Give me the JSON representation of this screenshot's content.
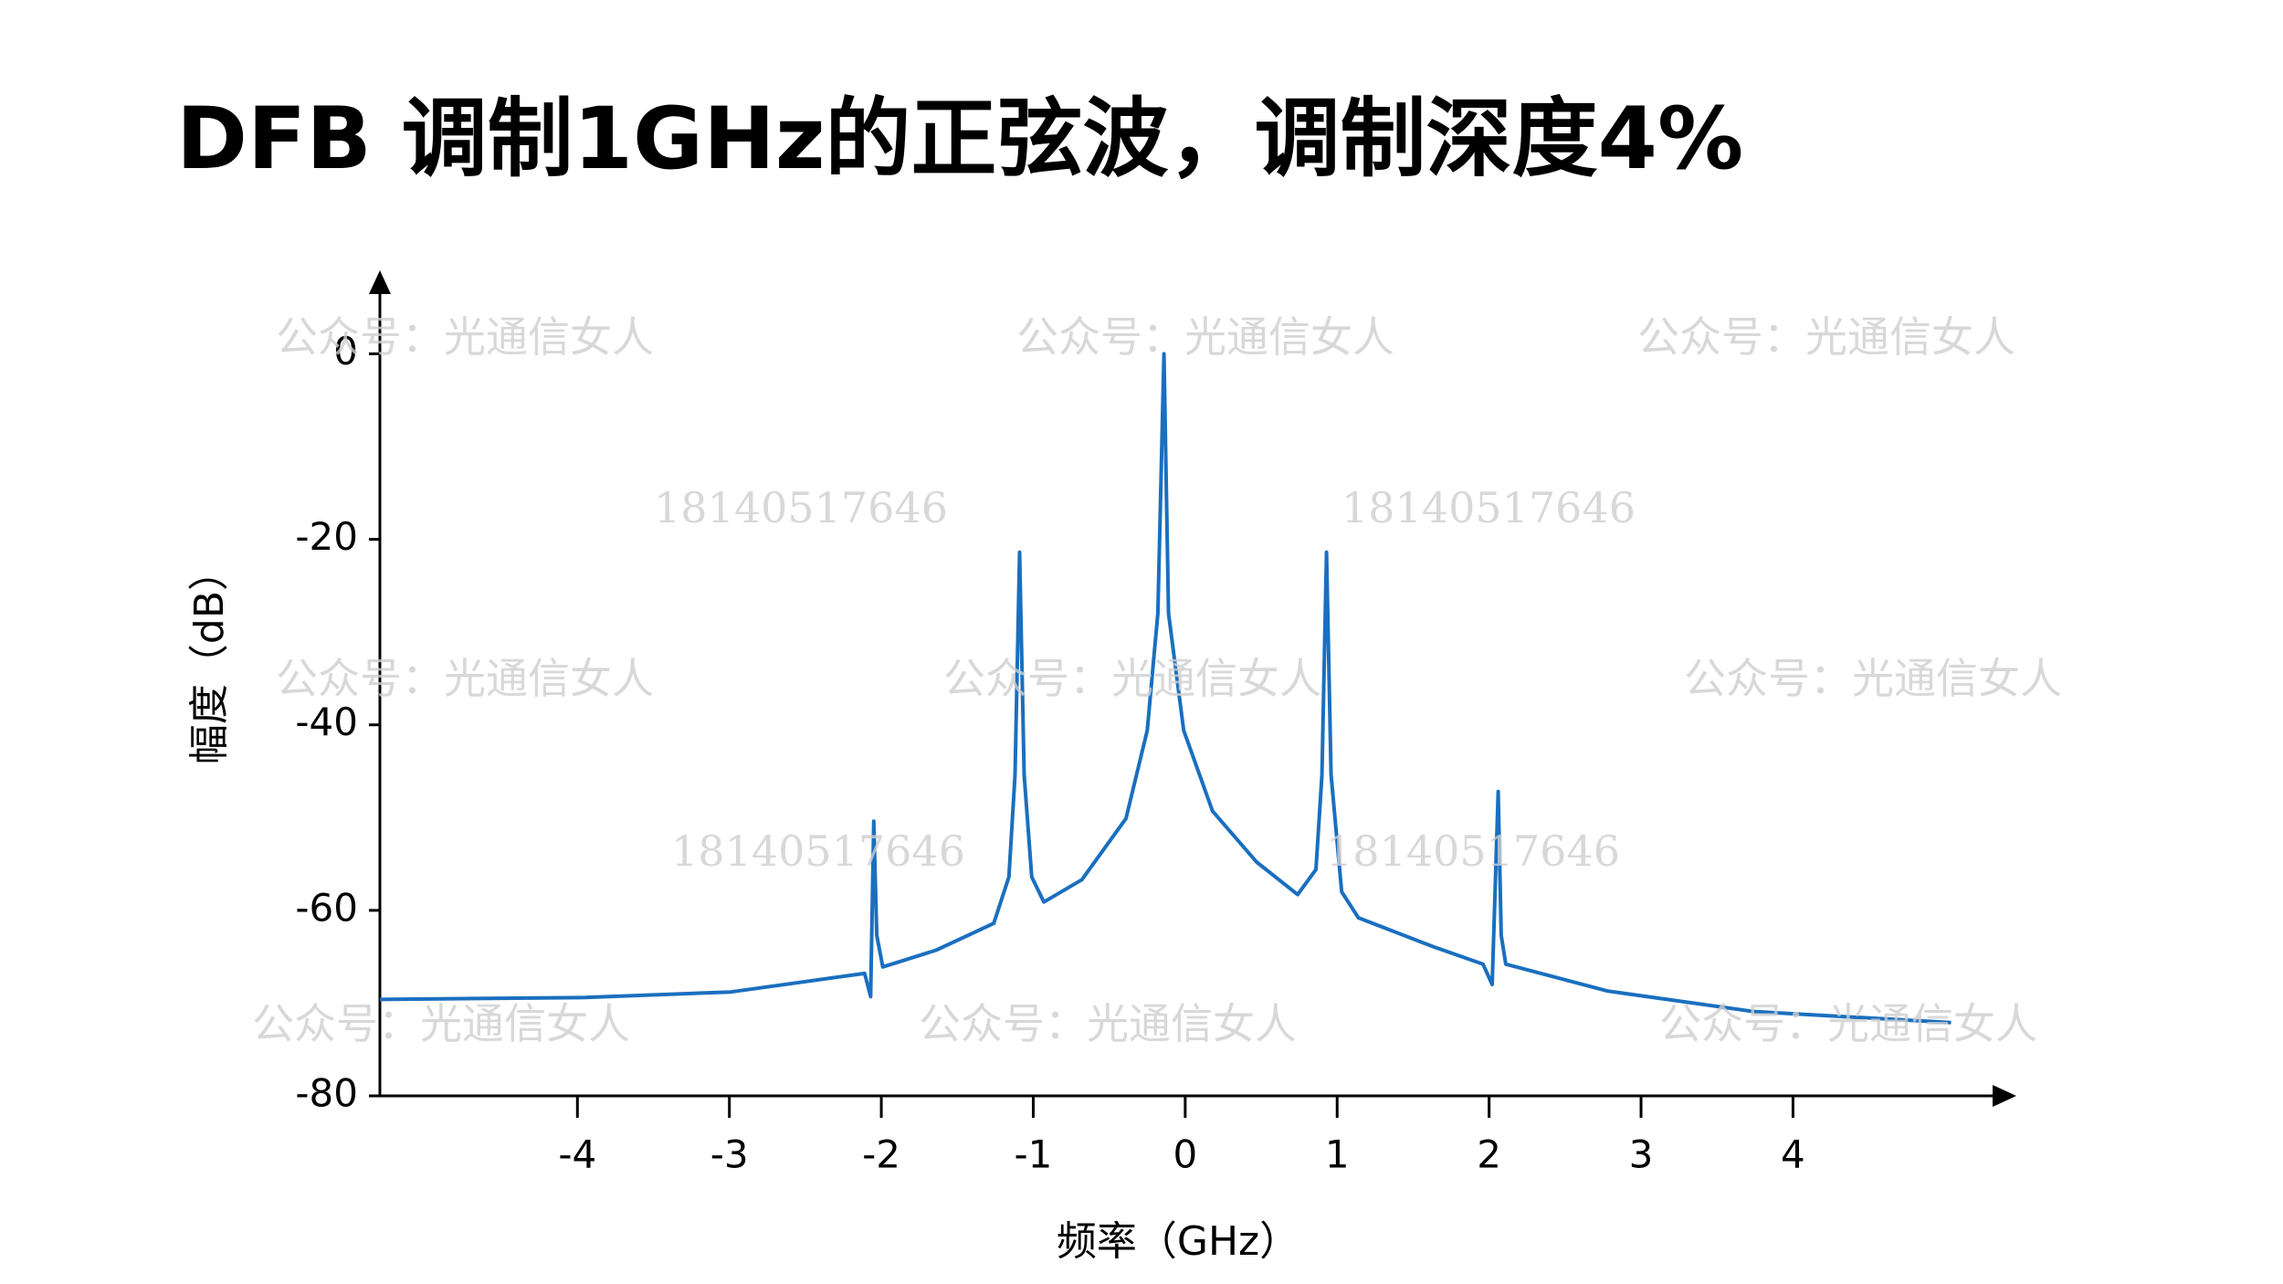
{
  "chart_data": {
    "type": "line",
    "title": "DFB 调制1GHz的正弦波，调制深度4%",
    "x_label": "频率（GHz）",
    "y_label": "幅度（dB）",
    "xlim": [
      -5.3,
      5.47
    ],
    "ylim": [
      -80,
      9
    ],
    "xticks": [
      -4,
      -3,
      -2,
      -1,
      0,
      1,
      2,
      3,
      4
    ],
    "yticks": [
      0,
      -20,
      -40,
      -60,
      -80
    ],
    "grid": false,
    "x": [
      -5.3,
      -3.95,
      -2.99,
      -2.11,
      -2.07,
      -2.05,
      -2.03,
      -1.99,
      -1.64,
      -1.26,
      -1.16,
      -1.12,
      -1.09,
      -1.06,
      -1.01,
      -0.93,
      -0.68,
      -0.39,
      -0.25,
      -0.18,
      -0.14,
      -0.11,
      -0.01,
      0.18,
      0.47,
      0.74,
      0.86,
      0.9,
      0.93,
      0.96,
      1.03,
      1.14,
      1.63,
      1.96,
      2.02,
      2.06,
      2.08,
      2.11,
      2.78,
      3.74,
      5.04
    ],
    "series": [
      {
        "color": "#1a6fbf",
        "values": [
          -69.6,
          -69.4,
          -68.8,
          -66.8,
          -69.3,
          -50.4,
          -62.7,
          -66.1,
          -64.3,
          -61.4,
          -56.4,
          -45.4,
          -21.4,
          -45.4,
          -56.4,
          -59.1,
          -56.7,
          -50.1,
          -40.6,
          -28,
          0,
          -28,
          -40.6,
          -49.3,
          -54.8,
          -58.3,
          -55.6,
          -45.4,
          -21.4,
          -45.4,
          -58,
          -60.8,
          -63.9,
          -65.8,
          -68,
          -47.2,
          -62.7,
          -65.8,
          -68.7,
          -70.9,
          -72.1
        ]
      }
    ],
    "watermarks": [
      "公众号：光通信女人",
      "公众号：光通信女人",
      "公众号：光通信女人",
      "公众号：光通信女人",
      "公众号：光通信女人",
      "公众号：光通信女人",
      "公众号：光通信女人",
      "公众号：光通信女人",
      "公众号：光通信女人",
      "18140517646",
      "18140517646",
      "18140517646",
      "18140517646"
    ]
  }
}
